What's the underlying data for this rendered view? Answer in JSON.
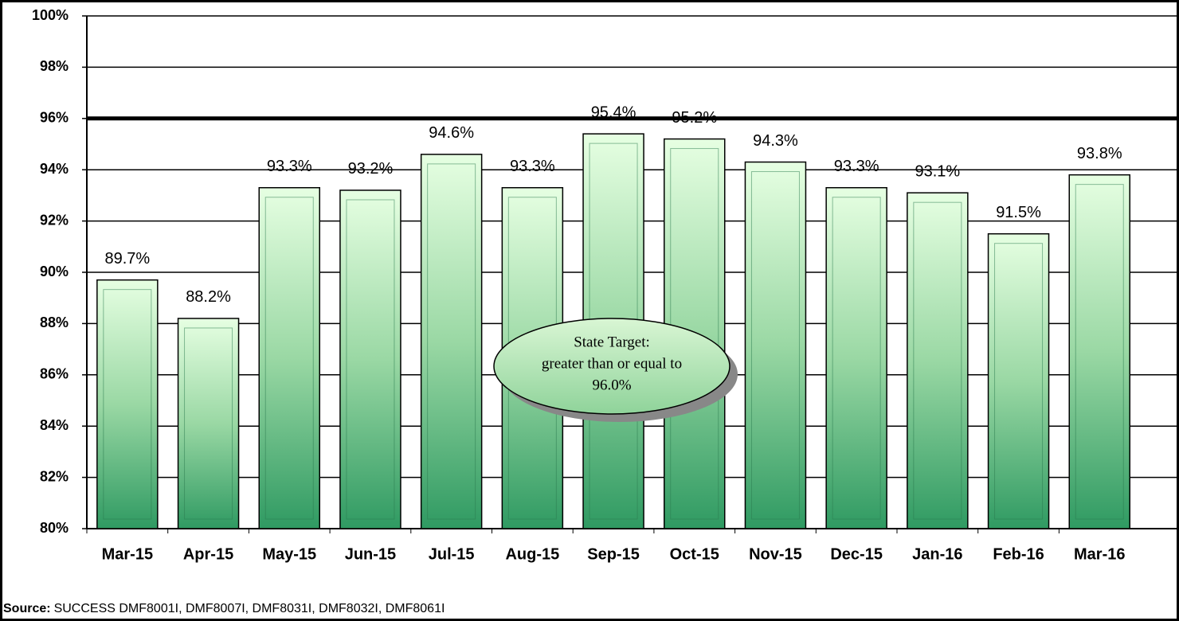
{
  "chart_data": {
    "type": "bar",
    "categories": [
      "Mar-15",
      "Apr-15",
      "May-15",
      "Jun-15",
      "Jul-15",
      "Aug-15",
      "Sep-15",
      "Oct-15",
      "Nov-15",
      "Dec-15",
      "Jan-16",
      "Feb-16",
      "Mar-16"
    ],
    "values": [
      89.7,
      88.2,
      93.3,
      93.2,
      94.6,
      93.3,
      95.4,
      95.2,
      94.3,
      93.3,
      93.1,
      91.5,
      93.8
    ],
    "value_labels": [
      "89.7%",
      "88.2%",
      "93.3%",
      "93.2%",
      "94.6%",
      "93.3%",
      "95.4%",
      "95.2%",
      "94.3%",
      "93.3%",
      "93.1%",
      "91.5%",
      "93.8%"
    ],
    "color": "#3aa06a",
    "ylim": [
      80,
      100
    ],
    "yticks": [
      {
        "value": 80,
        "label": "80%"
      },
      {
        "value": 82,
        "label": "82%"
      },
      {
        "value": 84,
        "label": "84%"
      },
      {
        "value": 86,
        "label": "86%"
      },
      {
        "value": 88,
        "label": "88%"
      },
      {
        "value": 90,
        "label": "90%"
      },
      {
        "value": 92,
        "label": "92%"
      },
      {
        "value": 94,
        "label": "94%"
      },
      {
        "value": 96,
        "label": "96%"
      },
      {
        "value": 98,
        "label": "98%"
      },
      {
        "value": 100,
        "label": "100%"
      }
    ],
    "grid": true,
    "target": 96,
    "annotation": [
      "State Target:",
      "greater than or equal to",
      "96.0%"
    ],
    "source": {
      "label": "Source:",
      "text": "SUCCESS DMF8001I, DMF8007I, DMF8031I, DMF8032I, DMF8061I"
    }
  }
}
